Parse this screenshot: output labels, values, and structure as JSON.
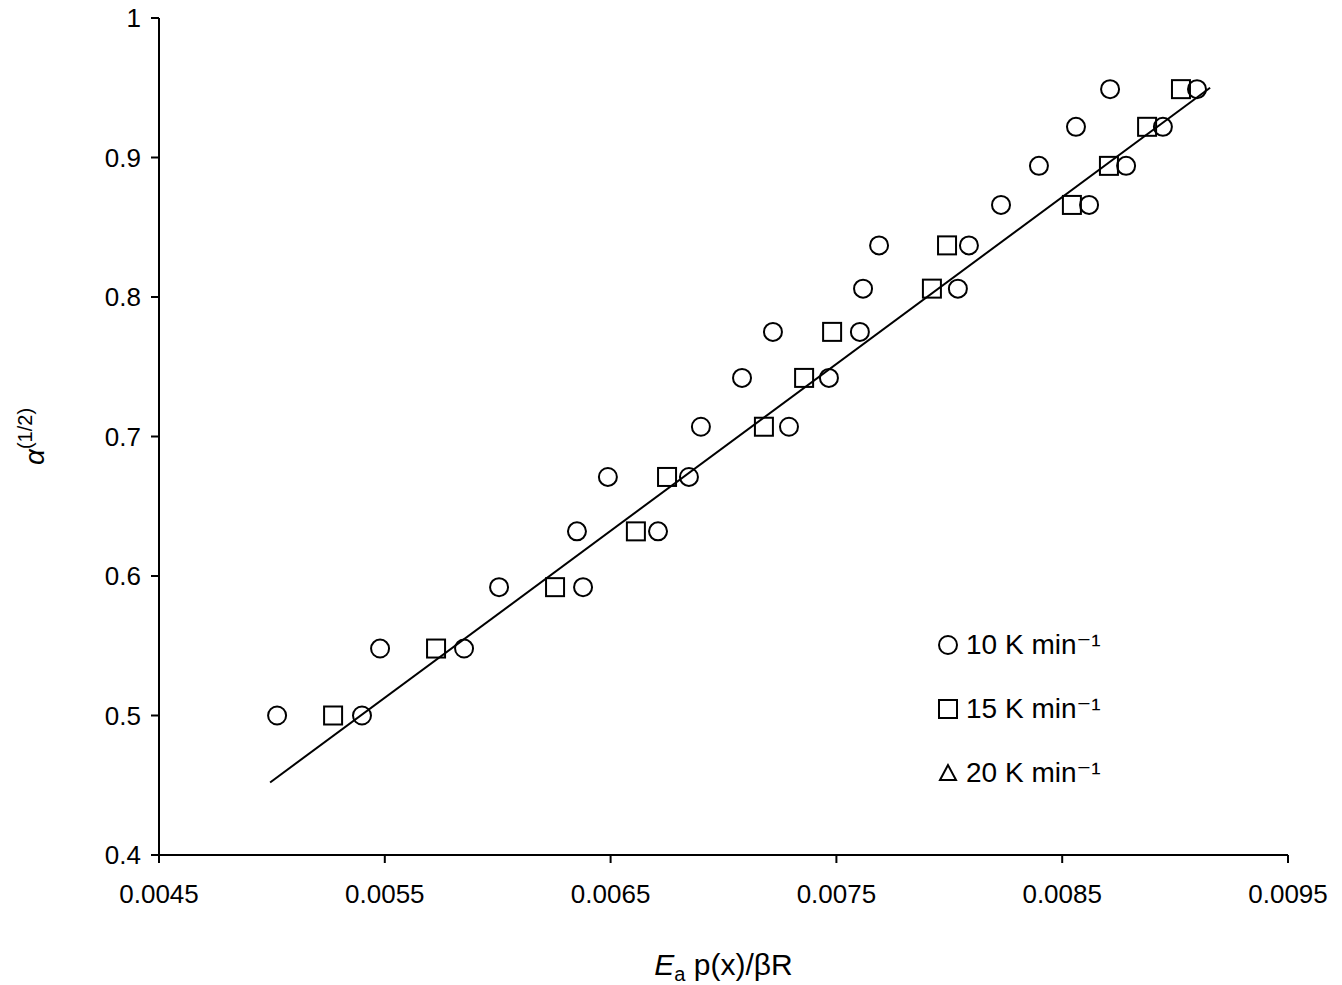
{
  "chart_data": {
    "type": "scatter",
    "x_label": "Ea p(x)/βR",
    "y_label": "α(1/2)",
    "xlim": [
      0.0045,
      0.0095
    ],
    "ylim": [
      0.4,
      1
    ],
    "xticks": [
      0.0045,
      0.0055,
      0.0065,
      0.0075,
      0.0085,
      0.0095
    ],
    "yticks": [
      0.4,
      0.5,
      0.6,
      0.7,
      0.8,
      0.9,
      1
    ],
    "grid": false,
    "legend": "bottom-right",
    "series": [
      {
        "name": "10 K min⁻¹",
        "color": "#000000",
        "marker": "circle",
        "x": [
          0.005023,
          0.005399,
          0.005479,
          0.005851,
          0.006006,
          0.006351,
          0.006378,
          0.006488,
          0.00671,
          0.006847,
          0.0069,
          0.007082,
          0.00729,
          0.007219,
          0.007467,
          0.007604,
          0.007618,
          0.007689,
          0.008038,
          0.008087,
          0.008229,
          0.008397,
          0.008561,
          0.008619,
          0.008712,
          0.008783,
          0.008946,
          0.009097
        ],
        "values": [
          0.5,
          0.5,
          0.548,
          0.548,
          0.592,
          0.632,
          0.592,
          0.671,
          0.632,
          0.671,
          0.707,
          0.742,
          0.707,
          0.775,
          0.742,
          0.775,
          0.806,
          0.837,
          0.806,
          0.837,
          0.866,
          0.894,
          0.922,
          0.866,
          0.949,
          0.894,
          0.922,
          0.949
        ]
      },
      {
        "name": "15 K min⁻¹",
        "color": "#000000",
        "marker": "square",
        "x": [
          0.005271,
          0.005727,
          0.006254,
          0.006612,
          0.00675,
          0.007179,
          0.007357,
          0.007481,
          0.007923,
          0.00799,
          0.008543,
          0.008707,
          0.008876,
          0.009026
        ],
        "values": [
          0.5,
          0.548,
          0.592,
          0.632,
          0.671,
          0.707,
          0.742,
          0.775,
          0.806,
          0.837,
          0.866,
          0.894,
          0.922,
          0.949
        ]
      },
      {
        "name": "20 K min⁻¹",
        "color": "#000000",
        "marker": "triangle",
        "x": [],
        "values": []
      },
      {
        "type": "line",
        "color": "#000000",
        "line_style": "solid",
        "x": [
          0.004992,
          0.009155
        ],
        "values": [
          0.452,
          0.95
        ]
      }
    ]
  }
}
